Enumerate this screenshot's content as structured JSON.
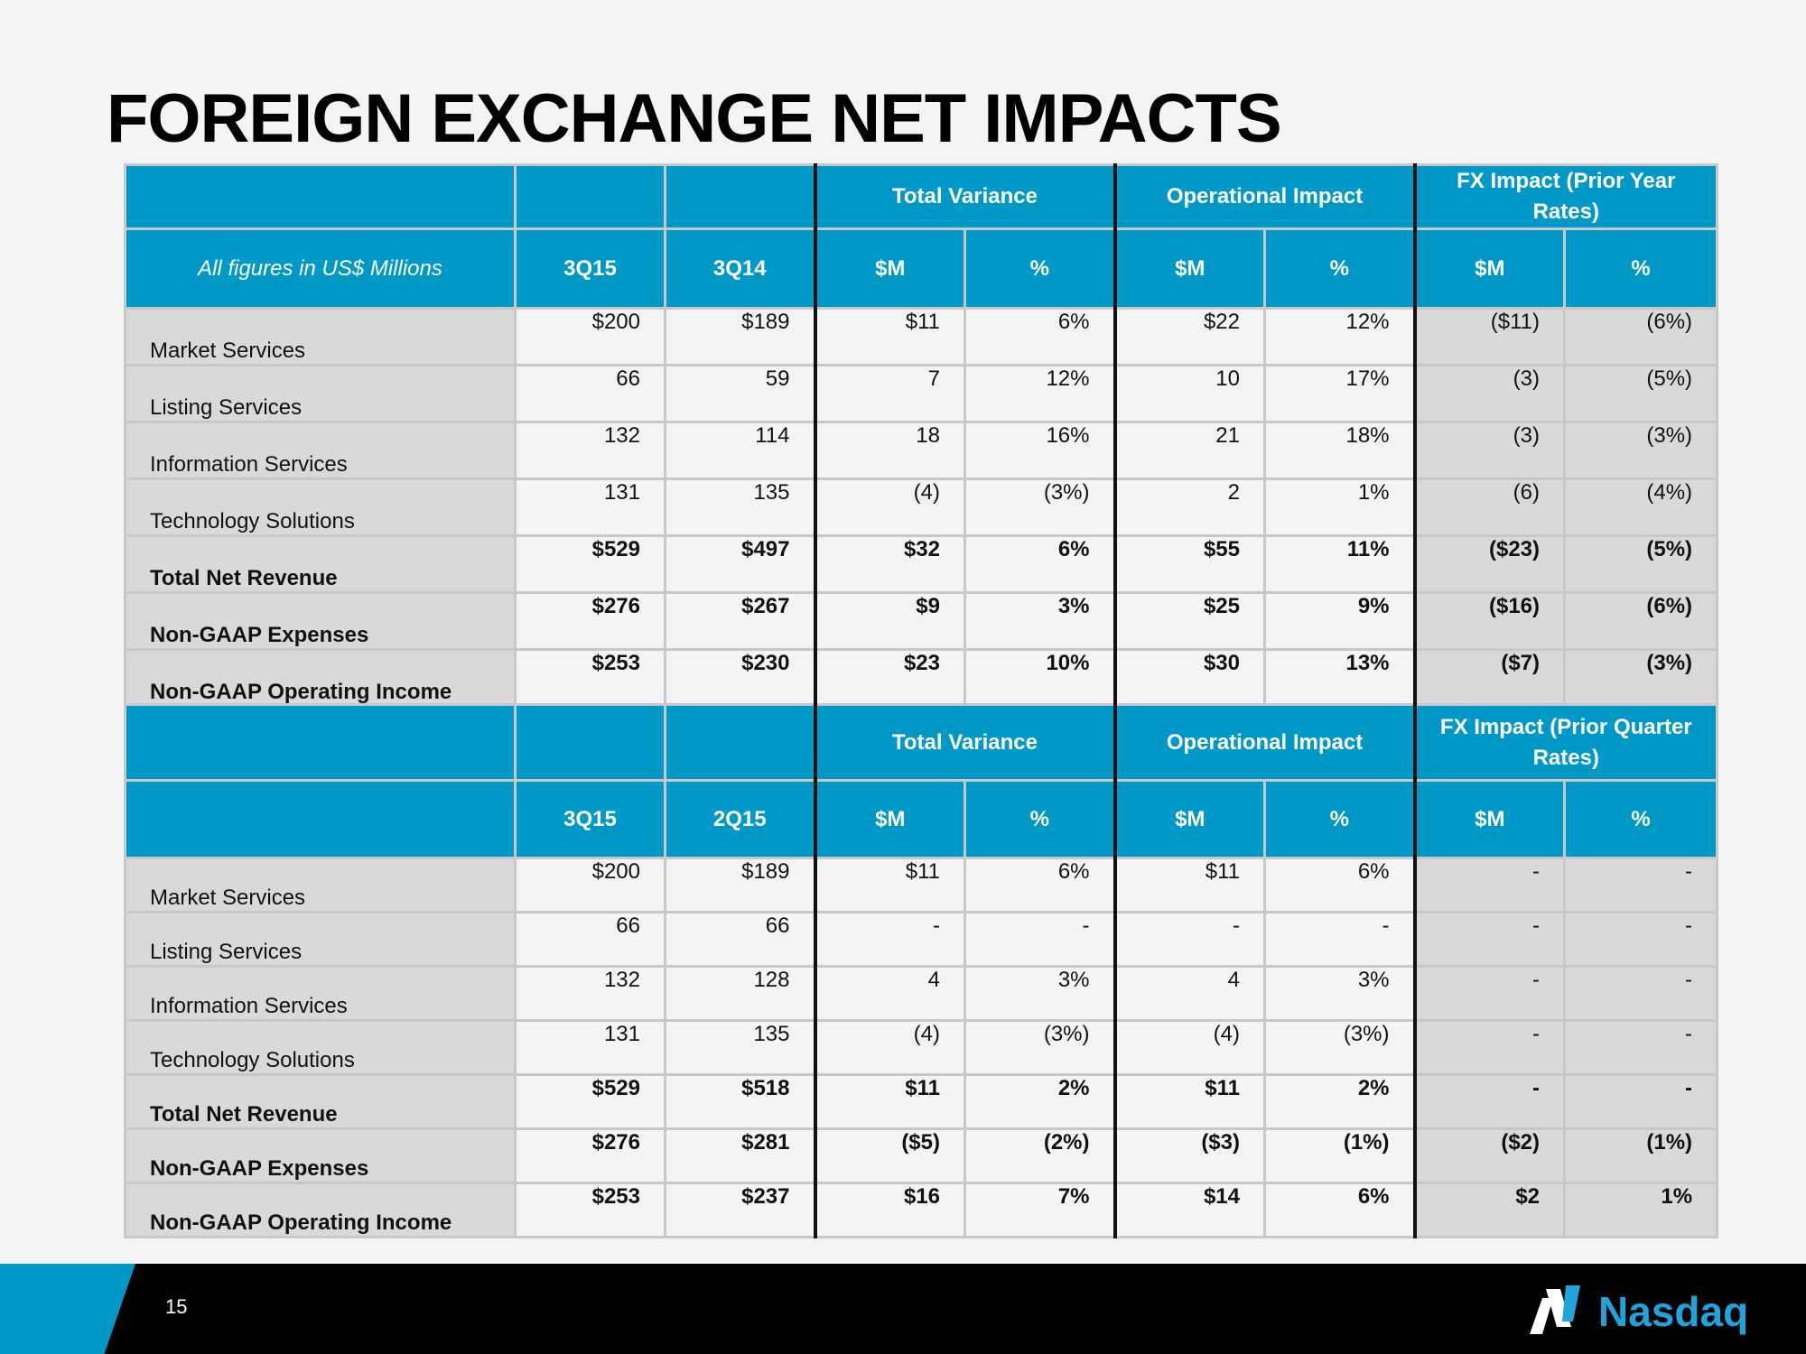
{
  "title": "FOREIGN EXCHANGE NET IMPACTS",
  "table1": {
    "group_headers": [
      "Total Variance",
      "Operational Impact",
      "FX Impact (Prior Year Rates)"
    ],
    "units_label": "All figures in US$ Millions",
    "columns": [
      "3Q15",
      "3Q14",
      "$M",
      "%",
      "$M",
      "%",
      "$M",
      "%"
    ],
    "rows": [
      {
        "label": "Market Services",
        "bold": false,
        "values": [
          "$200",
          "$189",
          "$11",
          "6%",
          "$22",
          "12%",
          "($11)",
          "(6%)"
        ]
      },
      {
        "label": "Listing Services",
        "bold": false,
        "values": [
          "66",
          "59",
          "7",
          "12%",
          "10",
          "17%",
          "(3)",
          "(5%)"
        ]
      },
      {
        "label": "Information Services",
        "bold": false,
        "values": [
          "132",
          "114",
          "18",
          "16%",
          "21",
          "18%",
          "(3)",
          "(3%)"
        ]
      },
      {
        "label": "Technology Solutions",
        "bold": false,
        "values": [
          "131",
          "135",
          "(4)",
          "(3%)",
          "2",
          "1%",
          "(6)",
          "(4%)"
        ]
      },
      {
        "label": "Total Net Revenue",
        "bold": true,
        "values": [
          "$529",
          "$497",
          "$32",
          "6%",
          "$55",
          "11%",
          "($23)",
          "(5%)"
        ]
      },
      {
        "label": "Non-GAAP Expenses",
        "bold": true,
        "values": [
          "$276",
          "$267",
          "$9",
          "3%",
          "$25",
          "9%",
          "($16)",
          "(6%)"
        ]
      },
      {
        "label": "Non-GAAP Operating Income",
        "bold": true,
        "values": [
          "$253",
          "$230",
          "$23",
          "10%",
          "$30",
          "13%",
          "($7)",
          "(3%)"
        ]
      }
    ]
  },
  "table2": {
    "group_headers": [
      "Total Variance",
      "Operational Impact",
      "FX Impact (Prior Quarter Rates)"
    ],
    "units_label": "",
    "columns": [
      "3Q15",
      "2Q15",
      "$M",
      "%",
      "$M",
      "%",
      "$M",
      "%"
    ],
    "rows": [
      {
        "label": "Market Services",
        "bold": false,
        "values": [
          "$200",
          "$189",
          "$11",
          "6%",
          "$11",
          "6%",
          "-",
          "-"
        ]
      },
      {
        "label": "Listing Services",
        "bold": false,
        "values": [
          "66",
          "66",
          "-",
          "-",
          "-",
          "-",
          "-",
          "-"
        ]
      },
      {
        "label": "Information Services",
        "bold": false,
        "values": [
          "132",
          "128",
          "4",
          "3%",
          "4",
          "3%",
          "-",
          "-"
        ]
      },
      {
        "label": "Technology Solutions",
        "bold": false,
        "values": [
          "131",
          "135",
          "(4)",
          "(3%)",
          "(4)",
          "(3%)",
          "-",
          "-"
        ]
      },
      {
        "label": "Total Net Revenue",
        "bold": true,
        "values": [
          "$529",
          "$518",
          "$11",
          "2%",
          "$11",
          "2%",
          "-",
          "-"
        ]
      },
      {
        "label": "Non-GAAP Expenses",
        "bold": true,
        "values": [
          "$276",
          "$281",
          "($5)",
          "(2%)",
          "($3)",
          "(1%)",
          "($2)",
          "(1%)"
        ]
      },
      {
        "label": "Non-GAAP Operating Income",
        "bold": true,
        "values": [
          "$253",
          "$237",
          "$16",
          "7%",
          "$14",
          "6%",
          "$2",
          "1%"
        ]
      }
    ]
  },
  "footer": {
    "page_number": "15",
    "logo_text": "Nasdaq",
    "logo_icon": "nasdaq-n-mark-icon",
    "brand_color": "#1fa3d8",
    "accent_color": "#0099c7"
  }
}
